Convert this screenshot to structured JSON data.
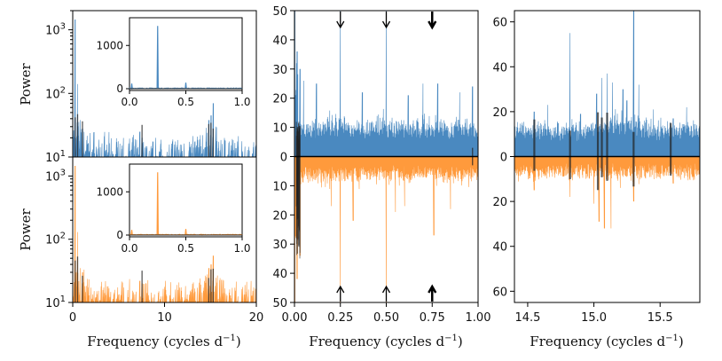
{
  "colors": {
    "blue": "#4a89c0",
    "orange": "#ff9a3c",
    "dark": "#222222",
    "black": "#000000"
  },
  "chart_data": [
    {
      "id": "left-top",
      "type": "line",
      "series_color": "blue",
      "yscale": "log",
      "xlim": [
        0,
        20
      ],
      "ylim": [
        10,
        2000
      ],
      "ylabel": "Power",
      "yticks": [
        10,
        100,
        1000
      ],
      "ytick_labels": [
        {
          "base": "10",
          "exp": "1"
        },
        {
          "base": "10",
          "exp": "2"
        },
        {
          "base": "10",
          "exp": "3"
        }
      ],
      "peaks": [
        [
          0.27,
          1450
        ],
        [
          0.53,
          140
        ],
        [
          0.8,
          38
        ],
        [
          1.06,
          28
        ],
        [
          7.3,
          25
        ],
        [
          7.55,
          20
        ],
        [
          15.3,
          70
        ],
        [
          15.06,
          45
        ],
        [
          14.82,
          38
        ],
        [
          15.58,
          30
        ]
      ],
      "dark_lines": [
        0.27,
        0.53,
        1.06,
        7.55,
        14.82,
        15.06,
        15.3
      ],
      "inset": {
        "xlim": [
          0,
          1
        ],
        "ylim": [
          0,
          1600
        ],
        "xticks": [
          "0.0",
          "0.5",
          "1.0"
        ],
        "yticks": [
          "0",
          "1000"
        ],
        "peaks": [
          [
            0.25,
            1450
          ],
          [
            0.5,
            140
          ],
          [
            0.02,
            120
          ]
        ]
      }
    },
    {
      "id": "left-bottom",
      "type": "line",
      "series_color": "orange",
      "yscale": "log",
      "xlim": [
        0,
        20
      ],
      "ylim": [
        10,
        2000
      ],
      "ylabel": "Power",
      "xlabel": "Frequency (cycles d",
      "xlabel_sup": "−1",
      "xlabel_end": ")",
      "xticks": [
        "0",
        "10",
        "20"
      ],
      "yticks": [
        10,
        100,
        1000
      ],
      "ytick_labels": [
        {
          "base": "10",
          "exp": "1"
        },
        {
          "base": "10",
          "exp": "2"
        },
        {
          "base": "10",
          "exp": "3"
        }
      ],
      "peaks": [
        [
          0.27,
          1450
        ],
        [
          0.53,
          130
        ],
        [
          0.8,
          35
        ],
        [
          1.06,
          30
        ],
        [
          7.3,
          22
        ],
        [
          7.55,
          20
        ],
        [
          15.3,
          55
        ],
        [
          15.06,
          40
        ],
        [
          14.82,
          35
        ]
      ],
      "dark_lines": [
        0.27,
        0.53,
        1.06,
        7.55,
        14.82,
        15.06,
        15.3
      ],
      "inset": {
        "xlim": [
          0,
          1
        ],
        "ylim": [
          0,
          1600
        ],
        "xticks": [
          "0.0",
          "0.5",
          "1.0"
        ],
        "yticks": [
          "0",
          "1000"
        ],
        "peaks": [
          [
            0.25,
            1450
          ],
          [
            0.5,
            140
          ],
          [
            0.02,
            120
          ]
        ]
      }
    },
    {
      "id": "middle",
      "type": "line",
      "mirrored": true,
      "xlim": [
        0,
        1
      ],
      "ylim": [
        -50,
        50
      ],
      "xticks": [
        "0.00",
        "0.25",
        "0.50",
        "0.75",
        "1.00"
      ],
      "yticks_top": [
        "50",
        "40",
        "30",
        "20",
        "10",
        "0"
      ],
      "yticks_bottom": [
        "10",
        "20",
        "30",
        "40",
        "50"
      ],
      "xlabel": "Frequency (cycles d",
      "xlabel_sup": "−1",
      "xlabel_end": ")",
      "top_peaks": [
        [
          0.003,
          50
        ],
        [
          0.25,
          50
        ],
        [
          0.5,
          50
        ],
        [
          0.05,
          26
        ],
        [
          0.12,
          25
        ],
        [
          0.7,
          25
        ],
        [
          0.78,
          25
        ],
        [
          0.37,
          22
        ],
        [
          0.62,
          21
        ],
        [
          0.9,
          22
        ],
        [
          0.97,
          24
        ],
        [
          0.015,
          36
        ],
        [
          0.03,
          30
        ]
      ],
      "bottom_peaks": [
        [
          0.003,
          50
        ],
        [
          0.25,
          50
        ],
        [
          0.5,
          50
        ],
        [
          0.76,
          27
        ],
        [
          0.32,
          22
        ],
        [
          0.55,
          19
        ],
        [
          0.2,
          17
        ],
        [
          0.85,
          18
        ],
        [
          0.6,
          17
        ],
        [
          0.015,
          42
        ],
        [
          0.03,
          34
        ]
      ],
      "arrows": [
        0.25,
        0.5,
        0.75
      ]
    },
    {
      "id": "right",
      "type": "line",
      "mirrored": true,
      "xlim": [
        14.4,
        15.8
      ],
      "ylim": [
        -65,
        65
      ],
      "xticks": [
        "14.5",
        "15.0",
        "15.5"
      ],
      "yticks_top": [
        "60",
        "40",
        "20",
        "0"
      ],
      "yticks_bottom": [
        "20",
        "40",
        "60"
      ],
      "xlabel": "Frequency (cycles d",
      "xlabel_sup": "−1",
      "xlabel_end": ")",
      "top_peaks": [
        [
          15.3,
          65
        ],
        [
          14.82,
          55
        ],
        [
          15.1,
          37
        ],
        [
          15.06,
          35
        ],
        [
          15.14,
          33
        ],
        [
          15.02,
          28
        ],
        [
          15.34,
          32
        ],
        [
          15.25,
          25
        ],
        [
          14.55,
          20
        ],
        [
          14.9,
          19
        ],
        [
          15.6,
          17
        ],
        [
          15.7,
          22
        ],
        [
          15.45,
          21
        ],
        [
          14.65,
          23
        ],
        [
          15.22,
          30
        ]
      ],
      "bottom_peaks": [
        [
          15.08,
          32
        ],
        [
          15.13,
          32
        ],
        [
          15.04,
          29
        ],
        [
          15.0,
          21
        ],
        [
          15.3,
          20
        ],
        [
          14.82,
          18
        ],
        [
          14.55,
          15
        ],
        [
          15.6,
          12
        ],
        [
          15.2,
          14
        ]
      ],
      "dark_lines": [
        14.55,
        14.82,
        15.03,
        15.06,
        15.1,
        15.3,
        15.58
      ]
    }
  ]
}
